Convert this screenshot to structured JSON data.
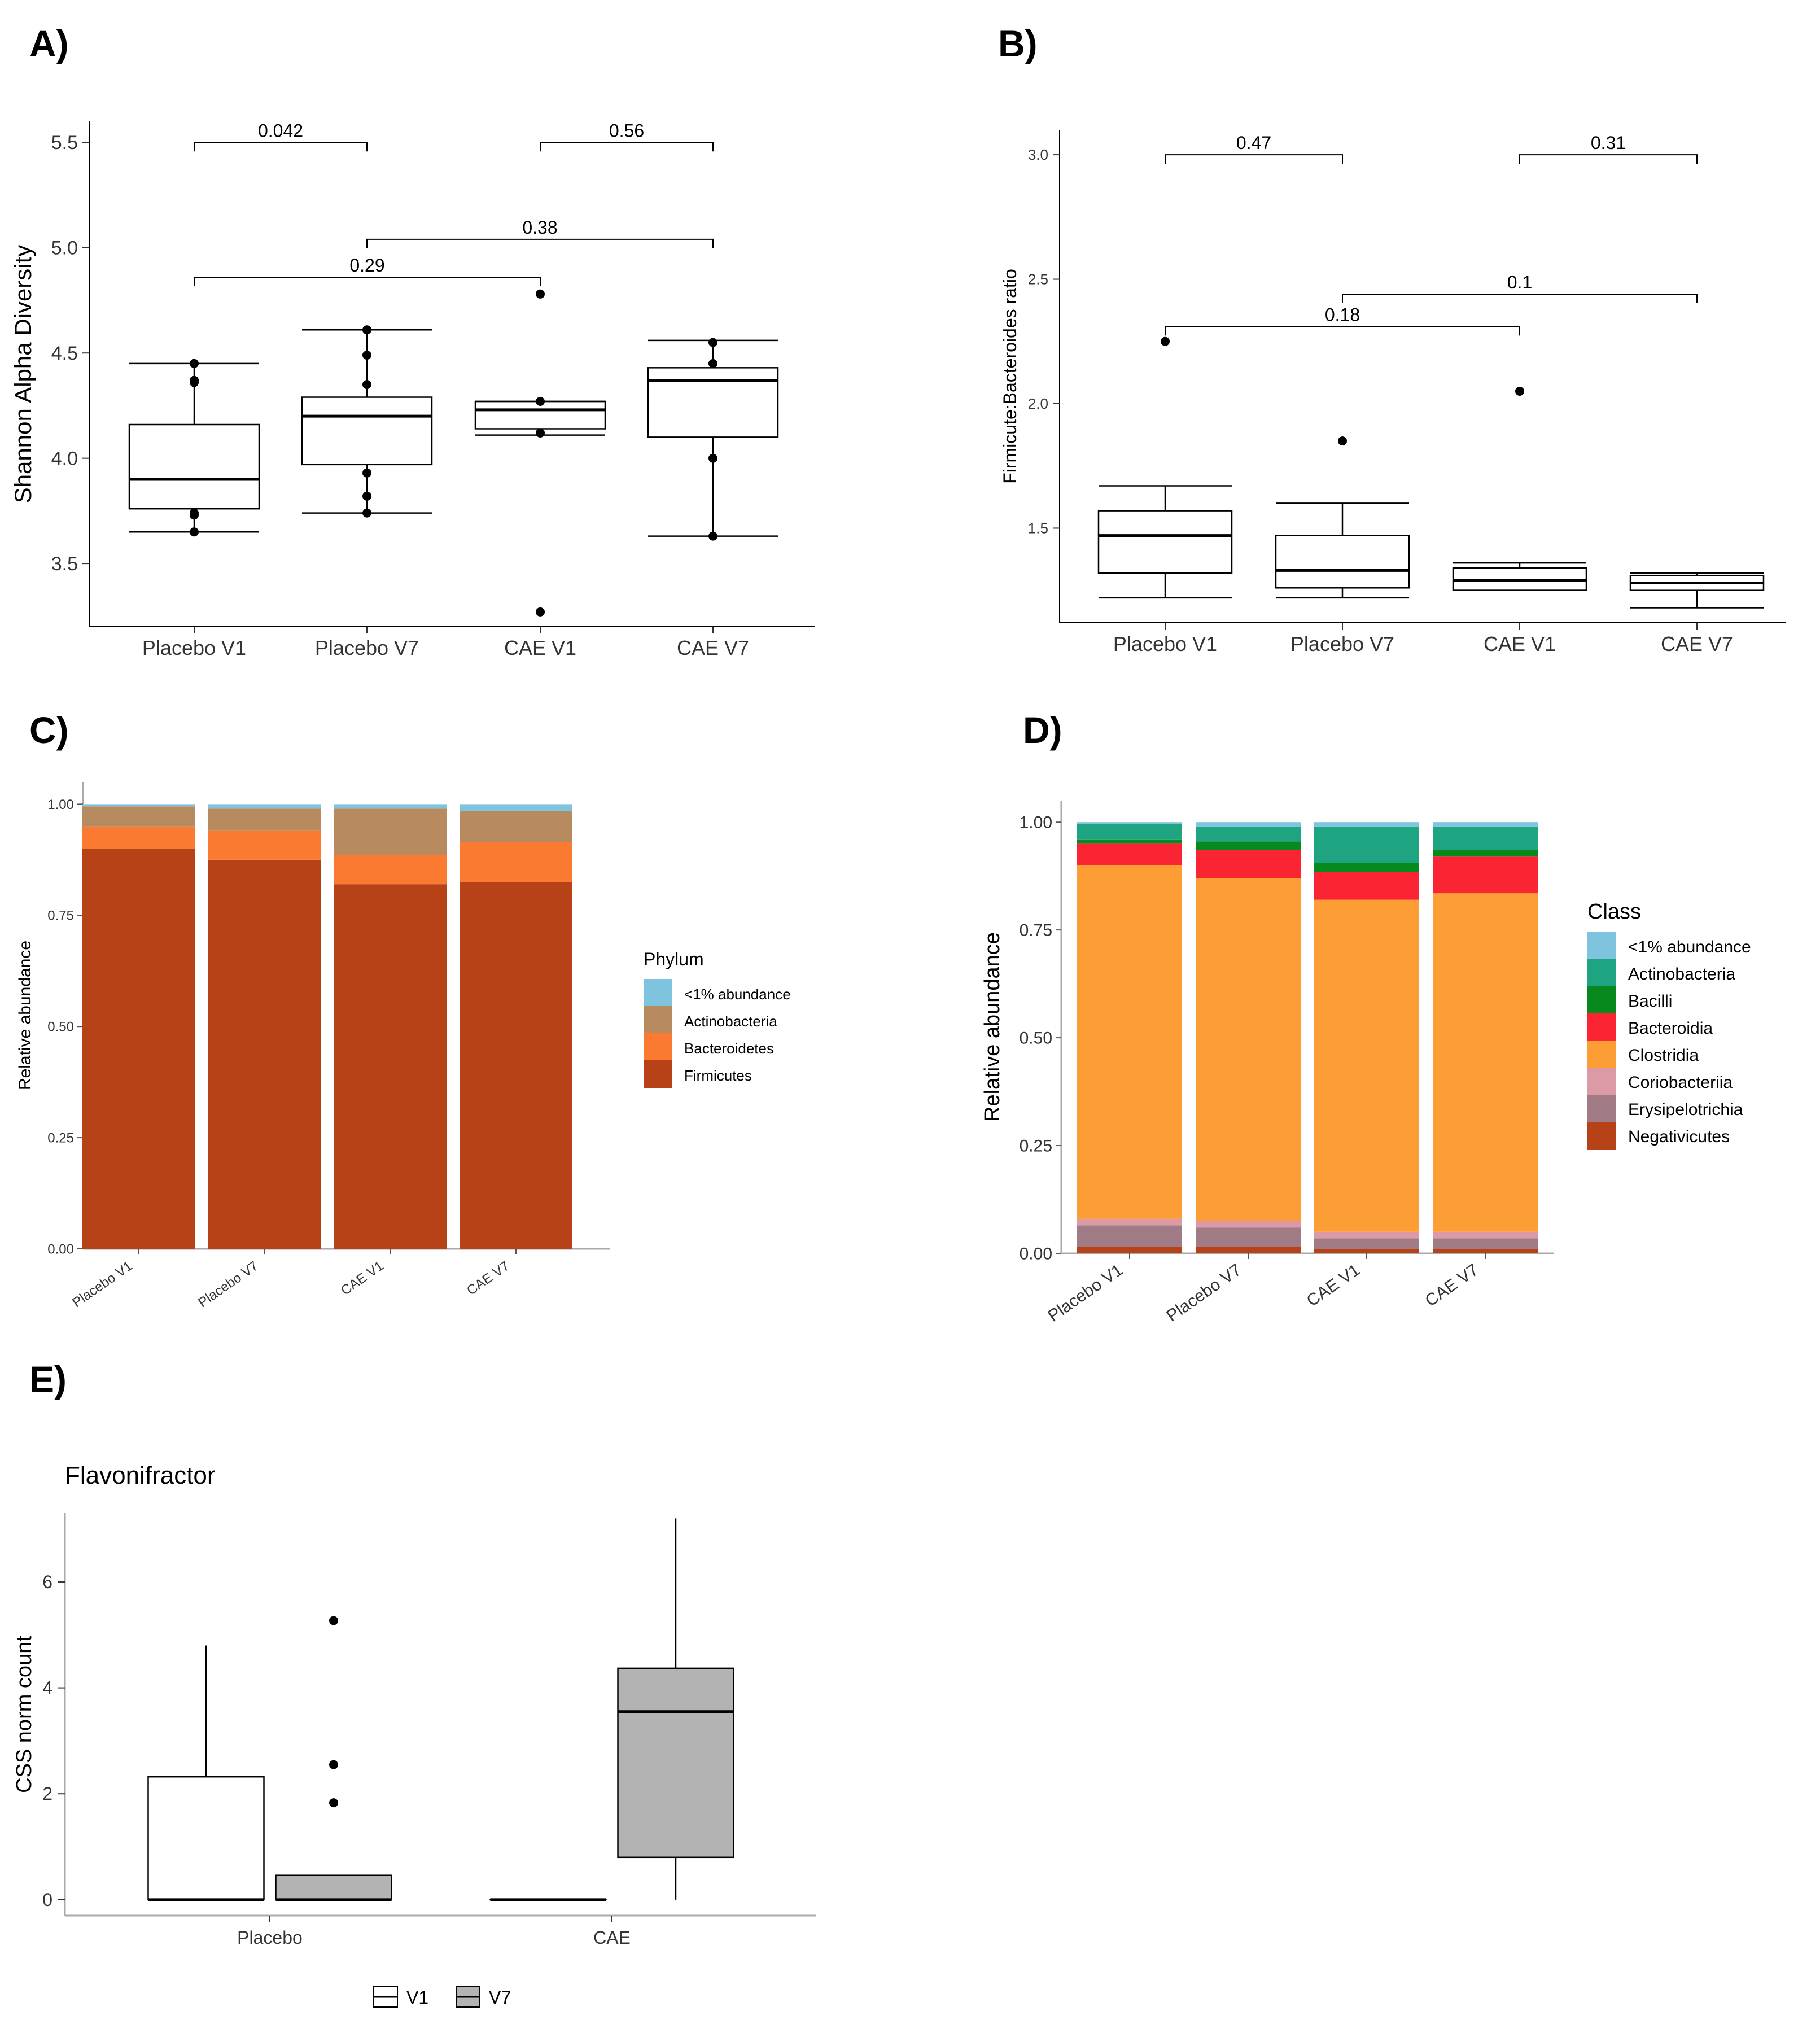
{
  "panels": {
    "A": {
      "label": "A)",
      "chart_data": {
        "type": "box",
        "ylabel": "Shannon Alpha Diversity",
        "ylim": [
          3.2,
          5.6
        ],
        "yticks": [
          3.5,
          4.0,
          4.5,
          5.0,
          5.5
        ],
        "ytick_labels": [
          "3.5",
          "4.0",
          "4.5",
          "5.0",
          "5.5"
        ],
        "categories": [
          "Placebo V1",
          "Placebo V7",
          "CAE V1",
          "CAE V7"
        ],
        "boxes": [
          {
            "q1": 3.76,
            "median": 3.9,
            "q3": 4.16,
            "wlo": 3.65,
            "whi": 4.45
          },
          {
            "q1": 3.97,
            "median": 4.2,
            "q3": 4.29,
            "wlo": 3.74,
            "whi": 4.61
          },
          {
            "q1": 4.14,
            "median": 4.23,
            "q3": 4.27,
            "wlo": 4.11,
            "whi": 4.27
          },
          {
            "q1": 4.1,
            "median": 4.37,
            "q3": 4.43,
            "wlo": 3.63,
            "whi": 4.56
          }
        ],
        "points": [
          [
            4.45,
            4.37,
            4.36,
            3.74,
            3.73,
            3.65
          ],
          [
            4.61,
            4.49,
            4.35,
            3.93,
            3.82,
            3.74
          ],
          [
            4.78,
            4.27,
            4.12,
            3.27
          ],
          [
            4.55,
            4.45,
            4.0,
            3.63
          ]
        ],
        "comparisons": [
          {
            "from": 0,
            "to": 1,
            "y": 5.5,
            "label": "0.042"
          },
          {
            "from": 2,
            "to": 3,
            "y": 5.5,
            "label": "0.56"
          },
          {
            "from": 1,
            "to": 3,
            "y": 5.04,
            "label": "0.38"
          },
          {
            "from": 0,
            "to": 2,
            "y": 4.86,
            "label": "0.29"
          }
        ]
      }
    },
    "B": {
      "label": "B)",
      "chart_data": {
        "type": "box",
        "ylabel": "Firmicute:Bacteroides ratio",
        "ylim": [
          1.12,
          3.1
        ],
        "yticks": [
          1.5,
          2.0,
          2.5,
          3.0
        ],
        "ytick_labels": [
          "1.5",
          "2.0",
          "2.5",
          "3.0"
        ],
        "categories": [
          "Placebo V1",
          "Placebo V7",
          "CAE V1",
          "CAE V7"
        ],
        "boxes": [
          {
            "q1": 1.32,
            "median": 1.47,
            "q3": 1.57,
            "wlo": 1.22,
            "whi": 1.67
          },
          {
            "q1": 1.26,
            "median": 1.33,
            "q3": 1.47,
            "wlo": 1.22,
            "whi": 1.6
          },
          {
            "q1": 1.25,
            "median": 1.29,
            "q3": 1.34,
            "wlo": 1.25,
            "whi": 1.36
          },
          {
            "q1": 1.25,
            "median": 1.28,
            "q3": 1.31,
            "wlo": 1.18,
            "whi": 1.32
          }
        ],
        "points": [
          [
            2.25
          ],
          [
            1.85
          ],
          [
            2.05
          ],
          []
        ],
        "comparisons": [
          {
            "from": 0,
            "to": 1,
            "y": 3.0,
            "label": "0.47"
          },
          {
            "from": 2,
            "to": 3,
            "y": 3.0,
            "label": "0.31"
          },
          {
            "from": 1,
            "to": 3,
            "y": 2.44,
            "label": "0.1"
          },
          {
            "from": 0,
            "to": 2,
            "y": 2.31,
            "label": "0.18"
          }
        ]
      }
    },
    "C": {
      "label": "C)",
      "chart_data": {
        "type": "stacked-bar",
        "ylabel": "Relative abundance",
        "ylim": [
          0,
          1.05
        ],
        "yticks": [
          0,
          0.25,
          0.5,
          0.75,
          1.0
        ],
        "ytick_labels": [
          "0.00",
          "0.25",
          "0.50",
          "0.75",
          "1.00"
        ],
        "categories": [
          "Placebo V1",
          "Placebo V7",
          "CAE V1",
          "CAE V7"
        ],
        "legend_title": "Phylum",
        "series": [
          {
            "name": "Firmicutes",
            "color": "#b84218",
            "values": [
              0.9,
              0.875,
              0.82,
              0.825
            ]
          },
          {
            "name": "Bacteroidetes",
            "color": "#fa7a31",
            "values": [
              0.05,
              0.065,
              0.065,
              0.09
            ]
          },
          {
            "name": "Actinobacteria",
            "color": "#b78a60",
            "values": [
              0.045,
              0.05,
              0.105,
              0.07
            ]
          },
          {
            "name": "<1% abundance",
            "color": "#7ec4df",
            "values": [
              0.005,
              0.01,
              0.01,
              0.015
            ]
          }
        ],
        "legend_order": [
          "<1% abundance",
          "Actinobacteria",
          "Bacteroidetes",
          "Firmicutes"
        ]
      }
    },
    "D": {
      "label": "D)",
      "chart_data": {
        "type": "stacked-bar",
        "ylabel": "Relative abundance",
        "ylim": [
          0,
          1.05
        ],
        "yticks": [
          0,
          0.25,
          0.5,
          0.75,
          1.0
        ],
        "ytick_labels": [
          "0.00",
          "0.25",
          "0.50",
          "0.75",
          "1.00"
        ],
        "categories": [
          "Placebo V1",
          "Placebo V7",
          "CAE V1",
          "CAE V7"
        ],
        "legend_title": "Class",
        "series": [
          {
            "name": "Negativicutes",
            "color": "#b84218",
            "values": [
              0.015,
              0.015,
              0.01,
              0.01
            ]
          },
          {
            "name": "Erysipelotrichia",
            "color": "#a07a84",
            "values": [
              0.05,
              0.045,
              0.025,
              0.025
            ]
          },
          {
            "name": "Coriobacteriia",
            "color": "#dc9aa6",
            "values": [
              0.015,
              0.015,
              0.015,
              0.015
            ]
          },
          {
            "name": "Clostridia",
            "color": "#fd9d35",
            "values": [
              0.82,
              0.795,
              0.77,
              0.785
            ]
          },
          {
            "name": "Bacteroidia",
            "color": "#fb2433",
            "values": [
              0.05,
              0.065,
              0.065,
              0.085
            ]
          },
          {
            "name": "Bacilli",
            "color": "#08891d",
            "values": [
              0.01,
              0.02,
              0.02,
              0.015
            ]
          },
          {
            "name": "Actinobacteria",
            "color": "#1fa482",
            "values": [
              0.035,
              0.035,
              0.085,
              0.055
            ]
          },
          {
            "name": "<1% abundance",
            "color": "#7ec4df",
            "values": [
              0.005,
              0.01,
              0.01,
              0.01
            ]
          }
        ],
        "legend_order": [
          "<1% abundance",
          "Actinobacteria",
          "Bacilli",
          "Bacteroidia",
          "Clostridia",
          "Coriobacteriia",
          "Erysipelotrichia",
          "Negativicutes"
        ]
      }
    },
    "E": {
      "label": "E)",
      "chart_data": {
        "type": "box",
        "title": "Flavonifractor",
        "ylabel": "CSS norm count",
        "ylim": [
          -0.3,
          7.3
        ],
        "yticks": [
          0,
          2,
          4,
          6
        ],
        "ytick_labels": [
          "0",
          "2",
          "4",
          "6"
        ],
        "categories": [
          "Placebo",
          "CAE"
        ],
        "legend": [
          "V1",
          "V7"
        ],
        "fills": {
          "V1": "#ffffff",
          "V7": "#b3b3b3"
        },
        "boxes": [
          {
            "group": "Placebo",
            "series": "V1",
            "q1": 0,
            "median": 0,
            "q3": 2.32,
            "wlo": 0,
            "whi": 4.8
          },
          {
            "group": "Placebo",
            "series": "V7",
            "q1": 0,
            "median": 0,
            "q3": 0.46,
            "wlo": 0,
            "whi": 0.46
          },
          {
            "group": "CAE",
            "series": "V1",
            "q1": 0,
            "median": 0,
            "q3": 0,
            "wlo": 0,
            "whi": 0
          },
          {
            "group": "CAE",
            "series": "V7",
            "q1": 0.8,
            "median": 3.55,
            "q3": 4.37,
            "wlo": 0,
            "whi": 7.2
          }
        ],
        "outliers": [
          {
            "group": "Placebo",
            "series": "V7",
            "values": [
              5.27,
              2.55,
              1.83
            ]
          }
        ]
      }
    }
  }
}
